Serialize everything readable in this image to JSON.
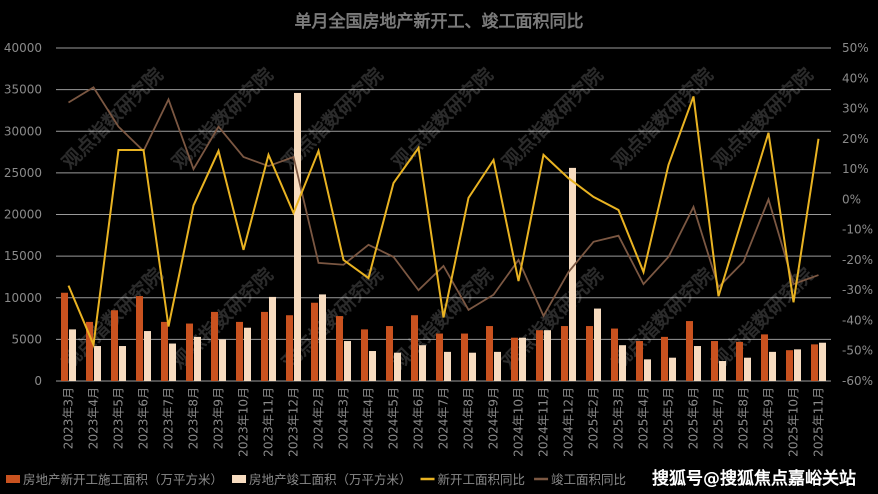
{
  "chart_data": {
    "type": "bar+line",
    "title": "单月全国房地产新开工、竣工面积同比",
    "categories": [
      "2023年3月",
      "2023年4月",
      "2023年5月",
      "2023年6月",
      "2023年7月",
      "2023年8月",
      "2023年9月",
      "2023年10月",
      "2023年11月",
      "2023年12月",
      "2024年2月",
      "2024年3月",
      "2024年4月",
      "2024年5月",
      "2024年6月",
      "2024年7月",
      "2024年8月",
      "2024年9月",
      "2024年10月",
      "2024年11月",
      "2024年12月",
      "2025年2月",
      "2025年3月",
      "2025年4月",
      "2025年5月",
      "2025年6月",
      "2025年7月",
      "2025年8月",
      "2025年9月",
      "2025年10月",
      "2025年11月"
    ],
    "left_axis": {
      "ylim": [
        0,
        40000
      ],
      "ticks": [
        "0",
        "5000",
        "10000",
        "15000",
        "20000",
        "25000",
        "30000",
        "35000",
        "40000"
      ]
    },
    "right_axis": {
      "ylim": [
        -0.6,
        0.5
      ],
      "ticks": [
        "-60%",
        "-50%",
        "-40%",
        "-30%",
        "-20%",
        "-10%",
        "0%",
        "10%",
        "20%",
        "30%",
        "40%",
        "50%"
      ]
    },
    "grid": true,
    "legend_position": "bottom",
    "series": [
      {
        "name": "房地产新开工施工面积（万平方米）",
        "type": "bar",
        "axis": "left",
        "color": "#c9521f",
        "values": [
          10600,
          7100,
          8500,
          10200,
          7100,
          6900,
          8300,
          7100,
          8300,
          7900,
          9400,
          7800,
          6200,
          6600,
          7900,
          5700,
          5700,
          6600,
          5200,
          6100,
          6600,
          6600,
          6300,
          4800,
          5300,
          7200,
          4800,
          4700,
          5600,
          3700,
          4400
        ]
      },
      {
        "name": "房地产竣工面积（万平方米）",
        "type": "bar",
        "axis": "left",
        "color": "#f7dcc0",
        "values": [
          6200,
          4200,
          4200,
          6000,
          4500,
          5300,
          5000,
          6400,
          10100,
          34600,
          10400,
          4800,
          3600,
          3400,
          4300,
          3500,
          3400,
          3500,
          5200,
          6100,
          25600,
          8700,
          4300,
          2600,
          2800,
          4200,
          2400,
          2800,
          3500,
          3800,
          4600
        ]
      },
      {
        "name": "新开工面积同比",
        "type": "line",
        "axis": "right",
        "color": "#e9b322",
        "values": [
          -0.285,
          -0.48,
          0.163,
          0.163,
          -0.42,
          -0.02,
          0.16,
          -0.167,
          0.147,
          -0.045,
          0.16,
          -0.2,
          -0.26,
          0.054,
          0.17,
          -0.39,
          0.005,
          0.13,
          -0.27,
          0.147,
          0.07,
          0.008,
          -0.035,
          -0.24,
          0.114,
          0.34,
          -0.32,
          -0.05,
          0.22,
          -0.34,
          0.2
        ]
      },
      {
        "name": "竣工面积同比",
        "type": "line",
        "axis": "right",
        "color": "#7b5742",
        "values": [
          0.32,
          0.37,
          0.24,
          0.16,
          0.33,
          0.1,
          0.24,
          0.14,
          0.11,
          0.14,
          -0.21,
          -0.216,
          -0.15,
          -0.19,
          -0.3,
          -0.22,
          -0.365,
          -0.315,
          -0.2,
          -0.385,
          -0.24,
          -0.14,
          -0.12,
          -0.28,
          -0.19,
          -0.025,
          -0.29,
          -0.206,
          0.0,
          -0.28,
          -0.25
        ]
      }
    ]
  },
  "watermark": {
    "text": "观点指数研究院"
  },
  "source_overlay": {
    "text": "搜狐号@搜狐焦点嘉峪关站"
  }
}
